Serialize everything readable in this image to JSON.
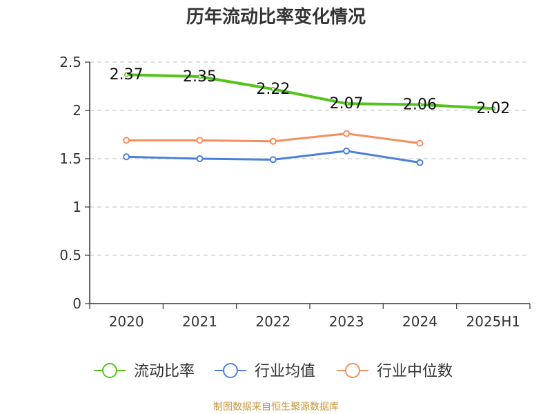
{
  "chart_data": {
    "type": "line",
    "title": "历年流动比率变化情况",
    "categories": [
      "2020",
      "2021",
      "2022",
      "2023",
      "2024",
      "2025H1"
    ],
    "ylim": [
      0,
      2.5
    ],
    "yticks": [
      "0",
      "0.5",
      "1",
      "1.5",
      "2",
      "2.5"
    ],
    "grid": true,
    "legend_position": "bottom",
    "series": [
      {
        "name": "流动比率",
        "color": "#52c41a",
        "values": [
          2.37,
          2.35,
          2.22,
          2.07,
          2.06,
          2.02
        ],
        "labels": [
          "2.37",
          "2.35",
          "2.22",
          "2.07",
          "2.06",
          "2.02"
        ]
      },
      {
        "name": "行业均值",
        "color": "#4a7fdc",
        "values": [
          1.52,
          1.5,
          1.49,
          1.58,
          1.46,
          null
        ]
      },
      {
        "name": "行业中位数",
        "color": "#f88d5a",
        "values": [
          1.69,
          1.69,
          1.68,
          1.76,
          1.66,
          null
        ]
      }
    ]
  },
  "footer": {
    "source": "制图数据来自恒生聚源数据库"
  }
}
